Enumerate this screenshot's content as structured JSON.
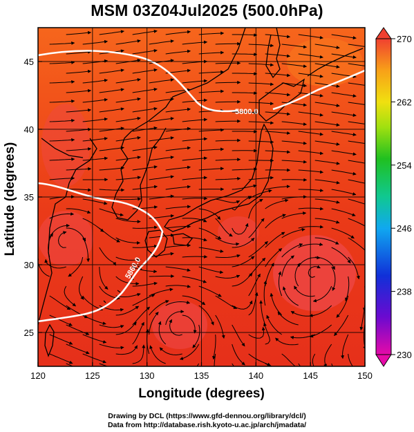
{
  "title": "MSM 03Z04Jul2025 (500.0hPa)",
  "xlabel": "Longitude (degrees)",
  "ylabel": "Latitude  (degrees)",
  "credits": {
    "line1": "Drawing by DCL (https://www.gfd-dennou.org/library/dcl/)",
    "line2": "Data from http://database.rish.kyoto-u.ac.jp/arch/jmadata/"
  },
  "map": {
    "lon_range": [
      120,
      150
    ],
    "lat_range": [
      22.5,
      47.5
    ],
    "lon_ticks": [
      120,
      125,
      130,
      135,
      140,
      145,
      150
    ],
    "lat_ticks": [
      25,
      30,
      35,
      40,
      45
    ],
    "grid": true,
    "field_colors": {
      "low": "#e42a16",
      "high": "#f45a1a",
      "patch": "#ee4a4a"
    },
    "contour_color": "#ffffff",
    "coastline_color": "#000000",
    "streamline_color": "#000000"
  },
  "contours": [
    {
      "label": "5800.0"
    },
    {
      "label": "5860.0"
    }
  ],
  "colorbar": {
    "min": 230,
    "max": 270,
    "ticks": [
      "270",
      "262",
      "254",
      "246",
      "238",
      "230"
    ],
    "extend": "both"
  },
  "chart_data": {
    "type": "heatmap",
    "title": "MSM 03Z04Jul2025 (500.0hPa)",
    "xlabel": "Longitude (degrees)",
    "ylabel": "Latitude  (degrees)",
    "xlim": [
      120,
      150
    ],
    "ylim": [
      22.5,
      47.5
    ],
    "x_ticks": [
      120,
      125,
      130,
      135,
      140,
      145,
      150
    ],
    "y_ticks": [
      25,
      30,
      35,
      40,
      45
    ],
    "color_scale": {
      "min": 230,
      "max": 270,
      "ticks": [
        270,
        262,
        254,
        246,
        238,
        230
      ]
    },
    "contour_levels": [
      5800.0,
      5860.0
    ],
    "grid": true
  }
}
